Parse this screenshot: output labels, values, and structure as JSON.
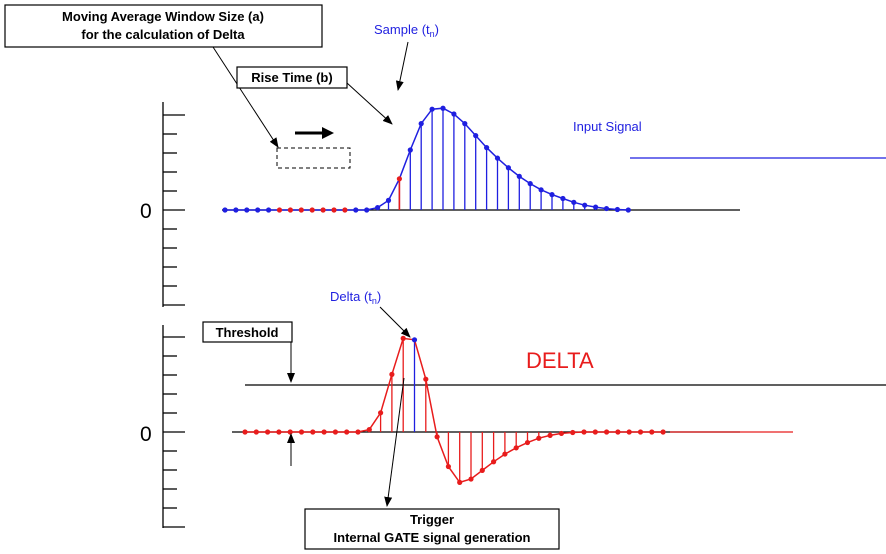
{
  "labels": {
    "window_size_line1": "Moving Average Window Size (a)",
    "window_size_line2": "for the calculation of Delta",
    "rise_time": "Rise Time (b)",
    "sample": "Sample (t",
    "sample_sub": "n",
    "sample_close": ")",
    "input_signal": "Input Signal",
    "delta_point": "Delta (t",
    "delta_point_sub": "n",
    "delta_point_close": ")",
    "threshold": "Threshold",
    "delta_title": "DELTA",
    "trigger_line1": "Trigger",
    "trigger_line2": "Internal GATE signal generation",
    "zero_top": "0",
    "zero_bottom": "0"
  },
  "colors": {
    "input_signal": "#1f1fe0",
    "delta_signal": "#e81c1c",
    "axis": "#000000"
  },
  "chart_data": [
    {
      "type": "line",
      "name": "input-signal",
      "x": [
        0,
        1,
        2,
        3,
        4,
        5,
        6,
        7,
        8,
        9,
        10,
        11,
        12,
        13,
        14,
        15,
        16,
        17,
        18,
        19,
        20,
        21,
        22,
        23,
        24,
        25,
        26,
        27,
        28,
        29,
        30,
        31,
        32,
        33,
        34,
        35,
        36,
        37
      ],
      "y": [
        0,
        0,
        0,
        0,
        0,
        0,
        0,
        0,
        0,
        0,
        0,
        0,
        0,
        0,
        0.05,
        0.2,
        0.65,
        1.25,
        1.8,
        2.1,
        2.12,
        2.0,
        1.8,
        1.55,
        1.3,
        1.08,
        0.88,
        0.7,
        0.55,
        0.42,
        0.32,
        0.24,
        0.16,
        0.1,
        0.06,
        0.03,
        0.01,
        0
      ],
      "highlighted_points": [
        5,
        6,
        7,
        8,
        9,
        10,
        11,
        16
      ]
    },
    {
      "type": "line",
      "name": "delta",
      "x": [
        0,
        1,
        2,
        3,
        4,
        5,
        6,
        7,
        8,
        9,
        10,
        11,
        12,
        13,
        14,
        15,
        16,
        17,
        18,
        19,
        20,
        21,
        22,
        23,
        24,
        25,
        26,
        27,
        28,
        29,
        30,
        31,
        32,
        33,
        34,
        35,
        36,
        37
      ],
      "y": [
        0,
        0,
        0,
        0,
        0,
        0,
        0,
        0,
        0,
        0,
        0,
        0.05,
        0.4,
        1.2,
        1.95,
        1.92,
        1.1,
        -0.1,
        -0.72,
        -1.05,
        -0.98,
        -0.8,
        -0.62,
        -0.46,
        -0.33,
        -0.22,
        -0.13,
        -0.07,
        -0.03,
        -0.01,
        0,
        0,
        0,
        0,
        0,
        0,
        0,
        0
      ],
      "highlighted_points": [
        15
      ],
      "threshold": 0.95
    }
  ]
}
